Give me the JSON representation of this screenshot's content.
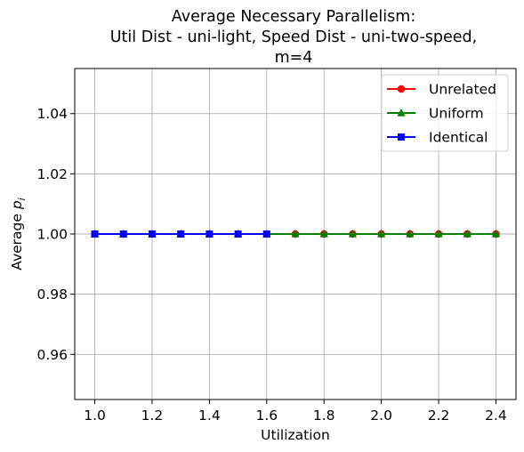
{
  "chart_data": {
    "type": "line",
    "title_lines": [
      "Average Necessary Parallelism:",
      "Util Dist - uni-light, Speed Dist - uni-two-speed,",
      "m=4"
    ],
    "xlabel": "Utilization",
    "ylabel_main": "Average ",
    "ylabel_var": "p",
    "ylabel_sub": "i",
    "xlim": [
      0.93,
      2.47
    ],
    "ylim": [
      0.945,
      1.055
    ],
    "xticks": [
      1.0,
      1.2,
      1.4,
      1.6,
      1.8,
      2.0,
      2.2,
      2.4
    ],
    "xtick_labels": [
      "1.0",
      "1.2",
      "1.4",
      "1.6",
      "1.8",
      "2.0",
      "2.2",
      "2.4"
    ],
    "yticks": [
      0.96,
      0.98,
      1.0,
      1.02,
      1.04
    ],
    "ytick_labels": [
      "0.96",
      "0.98",
      "1.00",
      "1.02",
      "1.04"
    ],
    "grid": true,
    "legend_position": "top-right",
    "series": [
      {
        "name": "Unrelated",
        "color": "#ff0000",
        "marker": "circle",
        "x": [
          1.0,
          1.1,
          1.2,
          1.3,
          1.4,
          1.5,
          1.6,
          1.7,
          1.8,
          1.9,
          2.0,
          2.1,
          2.2,
          2.3,
          2.4
        ],
        "y": [
          1,
          1,
          1,
          1,
          1,
          1,
          1,
          1,
          1,
          1,
          1,
          1,
          1,
          1,
          1
        ]
      },
      {
        "name": "Uniform",
        "color": "#008000",
        "marker": "triangle",
        "x": [
          1.0,
          1.1,
          1.2,
          1.3,
          1.4,
          1.5,
          1.6,
          1.7,
          1.8,
          1.9,
          2.0,
          2.1,
          2.2,
          2.3,
          2.4
        ],
        "y": [
          1,
          1,
          1,
          1,
          1,
          1,
          1,
          1,
          1,
          1,
          1,
          1,
          1,
          1,
          1
        ]
      },
      {
        "name": "Identical",
        "color": "#0000ff",
        "marker": "square",
        "x": [
          1.0,
          1.1,
          1.2,
          1.3,
          1.4,
          1.5,
          1.6
        ],
        "y": [
          1,
          1,
          1,
          1,
          1,
          1,
          1
        ]
      }
    ]
  }
}
